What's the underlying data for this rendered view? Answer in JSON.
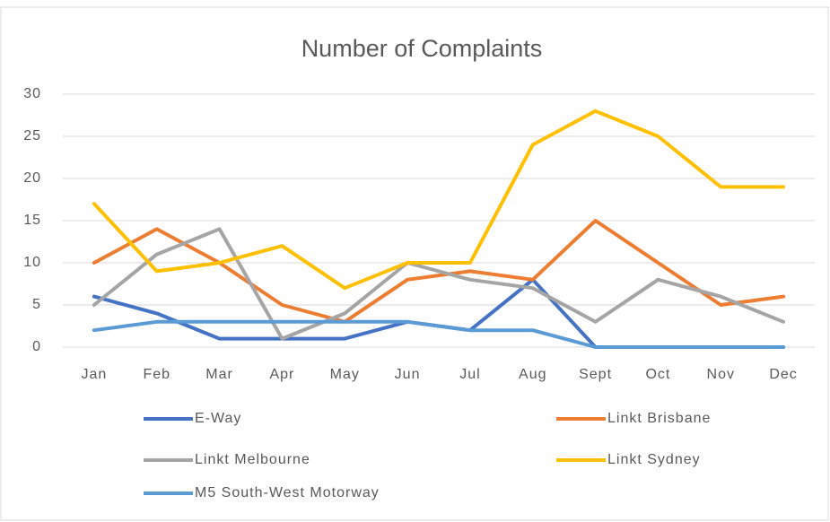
{
  "chart_data": {
    "type": "line",
    "title": "Number of Complaints",
    "categories": [
      "Jan",
      "Feb",
      "Mar",
      "Apr",
      "May",
      "Jun",
      "Jul",
      "Aug",
      "Sept",
      "Oct",
      "Nov",
      "Dec"
    ],
    "series": [
      {
        "name": "E-Way",
        "color": "#4472c4",
        "values": [
          6,
          4,
          1,
          1,
          1,
          3,
          2,
          8,
          0,
          0,
          0,
          0
        ]
      },
      {
        "name": "Linkt Brisbane",
        "color": "#ed7d31",
        "values": [
          10,
          14,
          10,
          5,
          3,
          8,
          9,
          8,
          15,
          10,
          5,
          6
        ]
      },
      {
        "name": "Linkt Melbourne",
        "color": "#a5a5a5",
        "values": [
          5,
          11,
          14,
          1,
          4,
          10,
          8,
          7,
          3,
          8,
          6,
          3
        ]
      },
      {
        "name": "Linkt Sydney",
        "color": "#ffc000",
        "values": [
          17,
          9,
          10,
          12,
          7,
          10,
          10,
          24,
          28,
          25,
          19,
          19
        ]
      },
      {
        "name": "M5 South-West Motorway",
        "color": "#5b9bd5",
        "values": [
          2,
          3,
          3,
          3,
          3,
          3,
          2,
          2,
          0,
          0,
          0,
          0
        ]
      }
    ],
    "ylim": [
      0,
      30
    ],
    "yticks": [
      0,
      5,
      10,
      15,
      20,
      25,
      30
    ],
    "grid": true,
    "legend": "bottom"
  }
}
